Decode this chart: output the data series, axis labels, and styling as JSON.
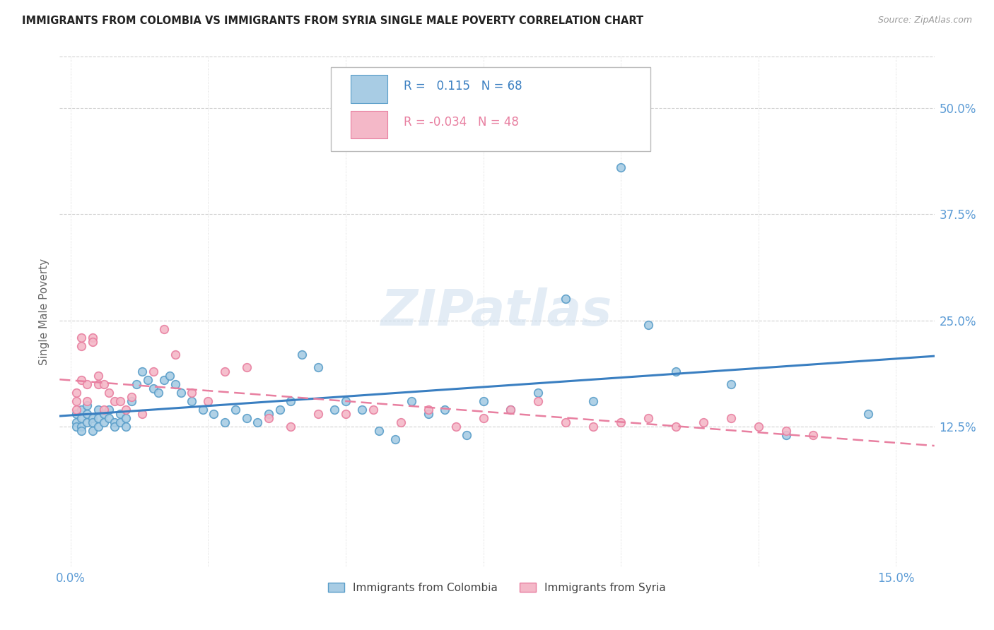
{
  "title": "IMMIGRANTS FROM COLOMBIA VS IMMIGRANTS FROM SYRIA SINGLE MALE POVERTY CORRELATION CHART",
  "source": "Source: ZipAtlas.com",
  "xlabel_ticks": [
    "0.0%",
    "",
    "",
    "",
    "",
    "",
    "15.0%"
  ],
  "xlabel_vals": [
    0.0,
    0.025,
    0.05,
    0.075,
    0.1,
    0.125,
    0.15
  ],
  "ylabel_ticks": [
    "12.5%",
    "25.0%",
    "37.5%",
    "50.0%"
  ],
  "ylabel_vals": [
    0.125,
    0.25,
    0.375,
    0.5
  ],
  "ylabel_label": "Single Male Poverty",
  "xlim": [
    -0.002,
    0.157
  ],
  "ylim": [
    -0.04,
    0.56
  ],
  "colombia_R": "0.115",
  "colombia_N": "68",
  "syria_R": "-0.034",
  "syria_N": "48",
  "colombia_color": "#a8cce4",
  "syria_color": "#f4b8c8",
  "colombia_edge_color": "#5a9ec9",
  "syria_edge_color": "#e87fa0",
  "colombia_line_color": "#3a7fc1",
  "syria_line_color": "#e87fa0",
  "legend_label_colombia": "Immigrants from Colombia",
  "legend_label_syria": "Immigrants from Syria",
  "colombia_x": [
    0.001,
    0.001,
    0.001,
    0.002,
    0.002,
    0.002,
    0.002,
    0.003,
    0.003,
    0.003,
    0.004,
    0.004,
    0.004,
    0.005,
    0.005,
    0.005,
    0.006,
    0.006,
    0.007,
    0.007,
    0.008,
    0.008,
    0.009,
    0.009,
    0.01,
    0.01,
    0.011,
    0.012,
    0.013,
    0.014,
    0.015,
    0.016,
    0.017,
    0.018,
    0.019,
    0.02,
    0.022,
    0.024,
    0.026,
    0.028,
    0.03,
    0.032,
    0.034,
    0.036,
    0.038,
    0.04,
    0.042,
    0.045,
    0.048,
    0.05,
    0.053,
    0.056,
    0.059,
    0.062,
    0.065,
    0.068,
    0.072,
    0.075,
    0.08,
    0.085,
    0.09,
    0.095,
    0.1,
    0.105,
    0.11,
    0.12,
    0.13,
    0.145
  ],
  "colombia_y": [
    0.14,
    0.13,
    0.125,
    0.145,
    0.135,
    0.125,
    0.12,
    0.15,
    0.13,
    0.14,
    0.135,
    0.13,
    0.12,
    0.145,
    0.135,
    0.125,
    0.14,
    0.13,
    0.145,
    0.135,
    0.13,
    0.125,
    0.14,
    0.13,
    0.135,
    0.125,
    0.155,
    0.175,
    0.19,
    0.18,
    0.17,
    0.165,
    0.18,
    0.185,
    0.175,
    0.165,
    0.155,
    0.145,
    0.14,
    0.13,
    0.145,
    0.135,
    0.13,
    0.14,
    0.145,
    0.155,
    0.21,
    0.195,
    0.145,
    0.155,
    0.145,
    0.12,
    0.11,
    0.155,
    0.14,
    0.145,
    0.115,
    0.155,
    0.145,
    0.165,
    0.275,
    0.155,
    0.43,
    0.245,
    0.19,
    0.175,
    0.115,
    0.14
  ],
  "syria_x": [
    0.001,
    0.001,
    0.001,
    0.002,
    0.002,
    0.002,
    0.003,
    0.003,
    0.004,
    0.004,
    0.005,
    0.005,
    0.006,
    0.006,
    0.007,
    0.008,
    0.009,
    0.01,
    0.011,
    0.013,
    0.015,
    0.017,
    0.019,
    0.022,
    0.025,
    0.028,
    0.032,
    0.036,
    0.04,
    0.045,
    0.05,
    0.055,
    0.06,
    0.065,
    0.07,
    0.075,
    0.08,
    0.085,
    0.09,
    0.095,
    0.1,
    0.105,
    0.11,
    0.115,
    0.12,
    0.125,
    0.13,
    0.135
  ],
  "syria_y": [
    0.165,
    0.155,
    0.145,
    0.18,
    0.22,
    0.23,
    0.175,
    0.155,
    0.23,
    0.225,
    0.175,
    0.185,
    0.145,
    0.175,
    0.165,
    0.155,
    0.155,
    0.145,
    0.16,
    0.14,
    0.19,
    0.24,
    0.21,
    0.165,
    0.155,
    0.19,
    0.195,
    0.135,
    0.125,
    0.14,
    0.14,
    0.145,
    0.13,
    0.145,
    0.125,
    0.135,
    0.145,
    0.155,
    0.13,
    0.125,
    0.13,
    0.135,
    0.125,
    0.13,
    0.135,
    0.125,
    0.12,
    0.115
  ],
  "watermark": "ZIPatlas",
  "bg_color": "#ffffff",
  "grid_color": "#d0d0d0"
}
